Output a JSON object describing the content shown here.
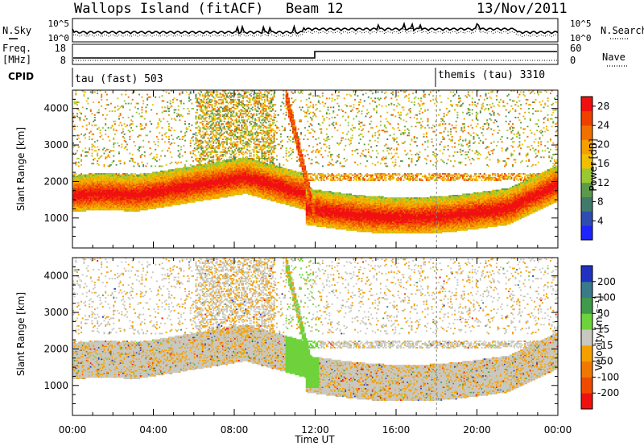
{
  "header": {
    "station": "Wallops Island (fitACF)",
    "beam": "Beam 12",
    "date": "13/Nov/2011"
  },
  "noise_panel": {
    "left_label": "N.Sky",
    "right_label": "N.Search",
    "left_ticks": [
      "10^5",
      "10^0"
    ],
    "right_ticks": [
      "10^5",
      "10^0"
    ]
  },
  "freq_panel": {
    "left_label_1": "Freq.",
    "left_label_2": "[MHz]",
    "right_label": "Nave",
    "left_ticks": [
      "18",
      "8"
    ],
    "right_ticks": [
      "60",
      "0"
    ]
  },
  "cpid": {
    "label": "CPID",
    "modes": [
      {
        "name": "tau (fast) 503",
        "start_hour": 0
      },
      {
        "name": "themis (tau) 3310",
        "start_hour": 18
      }
    ]
  },
  "chart_data": [
    {
      "type": "heatmap",
      "title": "",
      "xlabel": "Time UT",
      "ylabel": "Slant Range [km]",
      "xlim": [
        0,
        24
      ],
      "ylim": [
        180,
        4500
      ],
      "x_ticks": [
        "00:00",
        "04:00",
        "08:00",
        "12:00",
        "16:00",
        "20:00",
        "00:00"
      ],
      "y_ticks": [
        1000,
        2000,
        3000,
        4000
      ],
      "colorbar": {
        "label": "Power [dB]",
        "ticks": [
          "4",
          "8",
          "12",
          "16",
          "20",
          "24",
          "28"
        ],
        "range": [
          0,
          30
        ],
        "colors": [
          "#1f24ff",
          "#2f4db0",
          "#3f7a6a",
          "#5a9a4a",
          "#9ac832",
          "#f0c000",
          "#f5a000",
          "#f07000",
          "#f04000",
          "#f01010"
        ]
      }
    },
    {
      "type": "heatmap",
      "title": "",
      "xlabel": "Time UT",
      "ylabel": "Slant Range [km]",
      "xlim": [
        0,
        24
      ],
      "ylim": [
        180,
        4500
      ],
      "x_ticks": [
        "00:00",
        "04:00",
        "08:00",
        "12:00",
        "16:00",
        "20:00",
        "00:00"
      ],
      "y_ticks": [
        1000,
        2000,
        3000,
        4000
      ],
      "colorbar": {
        "label": "Velocity [m s⁻¹]",
        "ticks": [
          "200",
          "100",
          "50",
          "15",
          "-15",
          "-50",
          "-100",
          "-200"
        ],
        "colors": [
          "#2232c0",
          "#3a7a8a",
          "#3f9a4a",
          "#6ed23a",
          "#c8c8c0",
          "#f5a000",
          "#f07800",
          "#f04a00",
          "#f01010"
        ]
      }
    }
  ]
}
